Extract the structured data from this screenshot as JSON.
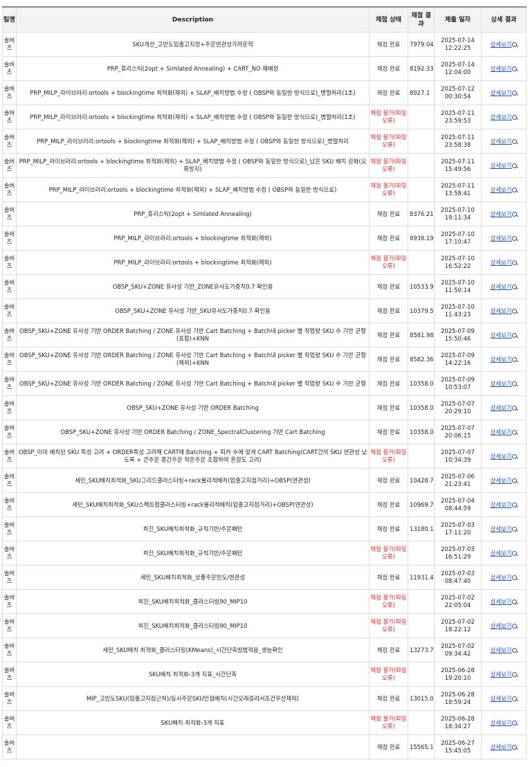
{
  "table": {
    "headers": {
      "team": "팀명",
      "description": "Description",
      "status": "채점 상태",
      "score": "채점 결과",
      "date": "제출 일자",
      "detail": "상세 결과"
    },
    "detail_label": "상세보기",
    "detail_icon": "magnifier-icon",
    "rows": [
      {
        "team": "솔버즈",
        "description": "SKU개선_고빈도입출고지정+주문연관성가까운적",
        "status": "채점 완료",
        "status_type": "ok",
        "score": "7979.04",
        "date": "2025-07-14",
        "time": "12:22:25"
      },
      {
        "team": "솔버즈",
        "description": "PRP_휴리스틱(2opt + Simlated Annealing) + CART_NO 재배정",
        "status": "채점 완료",
        "status_type": "ok",
        "score": "8192.33",
        "date": "2025-07-14",
        "time": "12:04:00"
      },
      {
        "team": "솔버즈",
        "description": "PRP_MILP_라이브러리:ortools + blockingtime 최적화(제외) + SLAP_배치방법 수정 ( OBSP와 동일한 방식으로)_병렬처리(1초)",
        "status": "채점 완료",
        "status_type": "ok",
        "score": "8927.1",
        "date": "2025-07-12",
        "time": "00:30:54"
      },
      {
        "team": "솔버즈",
        "description": "PRP_MILP_라이브러리:ortools + blockingtime 최적화(제외) + SLAP_배치방법 수정 ( OBSP와 동일한 방식으로)_병렬처리(1초)",
        "status": "채점 불가(파일 오류)",
        "status_type": "fail",
        "score": "",
        "date": "2025-07-11",
        "time": "23:59:53"
      },
      {
        "team": "솔버즈",
        "description": "PRP_MILP_라이브러리:ortools + blockingtime 최적화(제외) + SLAP_배치방법 수정 ( OBSP와 동일한 방식으로)_병렬처리",
        "status": "채점 불가(파일 오류)",
        "status_type": "fail",
        "score": "",
        "date": "2025-07-11",
        "time": "23:58:38"
      },
      {
        "team": "솔버즈",
        "description": "PRP_MILP_라이브러리:ortools + blockingtime 최적화(제외) + SLAP_배치방법 수정 ( OBSP와 동일한 방식으로)_남은 SKU 배치 강화(오류방지)",
        "status": "채점 불가(파일 오류)",
        "status_type": "fail",
        "score": "",
        "date": "2025-07-11",
        "time": "15:49:56"
      },
      {
        "team": "솔버즈",
        "description": "PRP_MILP_라이브러리:ortools + blockingtime 최적화(제외) + SLAP_배치방법 수정 ( OBSP와 동일한 방식으로)",
        "status": "채점 불가(파일 오류)",
        "status_type": "fail",
        "score": "",
        "date": "2025-07-11",
        "time": "13:58:41"
      },
      {
        "team": "솔버즈",
        "description": "PRP_휴리스틱(2opt + Simlated Annealing)",
        "status": "채점 완료",
        "status_type": "ok",
        "score": "8376.21",
        "date": "2025-07-10",
        "time": "19:11:34"
      },
      {
        "team": "솔버즈",
        "description": "PRP_MILP_라이브러리:ortools + blockingtime 최적화(제외)",
        "status": "채점 완료",
        "status_type": "ok",
        "score": "8938.19",
        "date": "2025-07-10",
        "time": "17:10:47"
      },
      {
        "team": "솔버즈",
        "description": "PRP_MILP_라이브러리:ortools + blockingtime 최적화(제외)",
        "status": "채점 불가(파일 오류)",
        "status_type": "fail",
        "score": "",
        "date": "2025-07-10",
        "time": "16:52:22"
      },
      {
        "team": "솔버즈",
        "description": "OBSP_SKU+ZONE 유사성 기반_ZONE유사도가중치0.7 확인용",
        "status": "채점 완료",
        "status_type": "ok",
        "score": "10533.99",
        "date": "2025-07-10",
        "time": "11:50:14"
      },
      {
        "team": "솔버즈",
        "description": "OBSP_SKU+ZONE 유사성 기반_SKU유사도가중치0.7 확인용",
        "status": "채점 완료",
        "status_type": "ok",
        "score": "10379.51",
        "date": "2025-07-10",
        "time": "11:43:23"
      },
      {
        "team": "솔버즈",
        "description": "OBSP_SKU+ZONE 유사성 기반 ORDER Batching / ZONE 유사성 기반 Cart Batching + Batch내 picker 별 작업량 SKU 수 기반 균형(포함)+KNN",
        "status": "채점 완료",
        "status_type": "ok",
        "score": "8581.98",
        "date": "2025-07-09",
        "time": "15:50:46"
      },
      {
        "team": "솔버즈",
        "description": "OBSP_SKU+ZONE 유사성 기반 ORDER Batching / ZONE 유사성 기반 Cart Batching + Batch내 picker 별 작업량 SKU 수 기반 균형(제외)+KNN",
        "status": "채점 완료",
        "status_type": "ok",
        "score": "8582.36",
        "date": "2025-07-09",
        "time": "14:22:16"
      },
      {
        "team": "솔버즈",
        "description": "OBSP_SKU+ZONE 유사성 기반 ORDER Batching / ZONE 유사성 기반 Cart Batching + Batch내 picker 별 작업량 SKU 수 기반 균형",
        "status": "채점 완료",
        "status_type": "ok",
        "score": "10358.08",
        "date": "2025-07-09",
        "time": "10:53:07"
      },
      {
        "team": "솔버즈",
        "description": "OBSP_SKU+ZONE 유사성 기반 ORDER Batching",
        "status": "채점 완료",
        "status_type": "ok",
        "score": "10358.08",
        "date": "2025-07-07",
        "time": "20:29:10"
      },
      {
        "team": "솔버즈",
        "description": "OBSP_SKU+ZONE 유사성 기반 ORDER Batching / ZONE_SpectralClustering 기반 Cart Batching",
        "status": "채점 완료",
        "status_type": "ok",
        "score": "10358.08",
        "date": "2025-07-07",
        "time": "20:06:15"
      },
      {
        "team": "솔버즈",
        "description": "OBSP_이미 배치된 SKU 특성 고려 + ORDER특성 고려해 CART에 Batching + 피커 수에 맞게 CART Batching(CART간의 SKU 연관성 낮도록 + 큰주문 중간주문 작은주문 조합하여 혼잡도 고려)",
        "status": "채점 불가(파일 오류)",
        "status_type": "fail",
        "score": "",
        "date": "2025-07-07",
        "time": "10:34:39"
      },
      {
        "team": "솔버즈",
        "description": "세민_SKU배치최적화_SKU그리드클러스터링+rack물리적배치(입출고지점거리)+OBSP(연관성)",
        "status": "채점 완료",
        "status_type": "ok",
        "score": "10428.72",
        "date": "2025-07-06",
        "time": "21:23:41"
      },
      {
        "team": "솔버즈",
        "description": "세민_SKU배치최적화_SKU스펙트럼클러스터링+rack물리적배치(입출고지점거리)+OBSP(연관성)",
        "status": "채점 완료",
        "status_type": "ok",
        "score": "10969.79",
        "date": "2025-07-04",
        "time": "08:44:59"
      },
      {
        "team": "솔버즈",
        "description": "희진_SKU배치최적화_규칙기반/주문패턴",
        "status": "채점 완료",
        "status_type": "ok",
        "score": "13180.14",
        "date": "2025-07-03",
        "time": "17:11:20"
      },
      {
        "team": "솔버즈",
        "description": "희진_SKU배치최적화_규칙기반/주문패턴",
        "status": "채점 불가(파일 오류)",
        "status_type": "fail",
        "score": "",
        "date": "2025-07-03",
        "time": "16:51:29"
      },
      {
        "team": "솔버즈",
        "description": "세민_SKU배치최적화_상품주문빈도/연관성",
        "status": "채점 완료",
        "status_type": "ok",
        "score": "11931.49",
        "date": "2025-07-03",
        "time": "08:47:40"
      },
      {
        "team": "솔버즈",
        "description": "희진_SKU배치최적화_클러스터링90_MIP10",
        "status": "채점 불가(파일 오류)",
        "status_type": "fail",
        "score": "",
        "date": "2025-07-02",
        "time": "22:05:04"
      },
      {
        "team": "솔버즈",
        "description": "희진_SKU배치최적화_클러스터링90_MIP10",
        "status": "채점 불가(파일 오류)",
        "status_type": "fail",
        "score": "",
        "date": "2025-07-02",
        "time": "18:22:12"
      },
      {
        "team": "솔버즈",
        "description": "세민_SKU배치 최적화_클러스터링(KMeans)_시간단축방법적용_생능확인",
        "status": "채점 완료",
        "status_type": "ok",
        "score": "13273.79",
        "date": "2025-07-02",
        "time": "09:34:42"
      },
      {
        "team": "솔버즈",
        "description": "SKU배치 최적화-3개 지표_시간단축",
        "status": "채점 불가(파일 오류)",
        "status_type": "fail",
        "score": "",
        "date": "2025-06-28",
        "time": "19:20:10"
      },
      {
        "team": "솔버즈",
        "description": "MIP_고빈도SKU(입출고지점근처)/동시주문SKU인접배치(시간오래걸려서조건우선제외)",
        "status": "채점 완료",
        "status_type": "ok",
        "score": "13015.03",
        "date": "2025-06-28",
        "time": "18:59:24"
      },
      {
        "team": "솔버즈",
        "description": "SKU배치 최적화-3개 지표",
        "status": "채점 불가(파일 오류)",
        "status_type": "fail",
        "score": "",
        "date": "2025-06-28",
        "time": "18:34:27"
      },
      {
        "team": "솔버즈",
        "description": "",
        "status": "채점 완료",
        "status_type": "ok",
        "score": "15565.12",
        "date": "2025-06-27",
        "time": "15:45:05"
      }
    ]
  }
}
